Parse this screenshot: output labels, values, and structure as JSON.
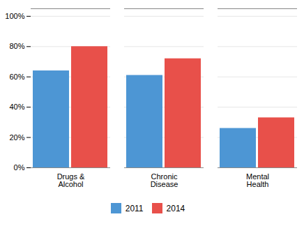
{
  "chart_data": {
    "type": "bar",
    "categories": [
      "Drugs &\nAlcohol",
      "Chronic\nDisease",
      "Mental\nHealth"
    ],
    "series": [
      {
        "name": "2011",
        "color": "#4d96d4",
        "values": [
          0.64,
          0.61,
          0.26
        ]
      },
      {
        "name": "2014",
        "color": "#e8504a",
        "values": [
          0.8,
          0.72,
          0.33
        ]
      }
    ],
    "ylim": [
      0,
      1.05
    ],
    "yticks": [
      {
        "value": 0.0,
        "label": "0%"
      },
      {
        "value": 0.2,
        "label": "20%"
      },
      {
        "value": 0.4,
        "label": "40%"
      },
      {
        "value": 0.6,
        "label": "60%"
      },
      {
        "value": 0.8,
        "label": "80%"
      },
      {
        "value": 1.0,
        "label": "100%"
      }
    ],
    "grid": true,
    "legend": "bottom"
  }
}
